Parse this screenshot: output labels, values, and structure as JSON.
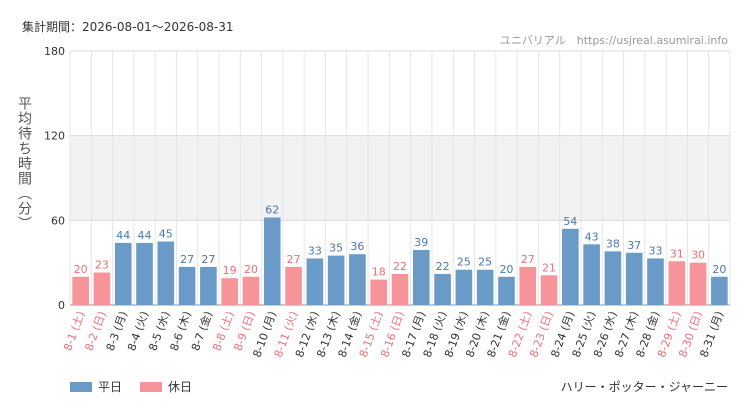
{
  "header": {
    "period_label": "集計期間：2026-08-01～2026-08-31",
    "site_credit": "ユニバリアル　https://usjreal.asumirai.info"
  },
  "footer": {
    "attraction": "ハリー・ポッター・ジャーニー"
  },
  "chart_data": {
    "type": "bar",
    "ylabel": "平均待ち時間（分）",
    "ylim": [
      0,
      180
    ],
    "yticks": [
      0,
      60,
      120,
      180
    ],
    "shaded_band": [
      60,
      120
    ],
    "grid": true,
    "legend_position": "bottom-left",
    "colors": {
      "weekday": "#6a9bc8",
      "holiday": "#f6949a",
      "holiday_label": "#e8707a",
      "weekday_label": "#333333"
    },
    "legend": [
      {
        "key": "weekday",
        "label": "平日"
      },
      {
        "key": "holiday",
        "label": "休日"
      }
    ],
    "categories": [
      "8-1 (土)",
      "8-2 (日)",
      "8-3 (月)",
      "8-4 (火)",
      "8-5 (水)",
      "8-6 (木)",
      "8-7 (金)",
      "8-8 (土)",
      "8-9 (日)",
      "8-10 (月)",
      "8-11 (火)",
      "8-12 (水)",
      "8-13 (木)",
      "8-14 (金)",
      "8-15 (土)",
      "8-16 (日)",
      "8-17 (月)",
      "8-18 (火)",
      "8-19 (水)",
      "8-20 (木)",
      "8-21 (金)",
      "8-22 (土)",
      "8-23 (日)",
      "8-24 (月)",
      "8-25 (火)",
      "8-26 (水)",
      "8-27 (木)",
      "8-28 (金)",
      "8-29 (土)",
      "8-30 (日)",
      "8-31 (月)"
    ],
    "values": [
      20,
      23,
      44,
      44,
      45,
      27,
      27,
      19,
      20,
      62,
      27,
      33,
      35,
      36,
      18,
      22,
      39,
      22,
      25,
      25,
      20,
      27,
      21,
      54,
      43,
      38,
      37,
      33,
      31,
      30,
      20
    ],
    "day_type": [
      "holiday",
      "holiday",
      "weekday",
      "weekday",
      "weekday",
      "weekday",
      "weekday",
      "holiday",
      "holiday",
      "weekday",
      "holiday",
      "weekday",
      "weekday",
      "weekday",
      "holiday",
      "holiday",
      "weekday",
      "weekday",
      "weekday",
      "weekday",
      "weekday",
      "holiday",
      "holiday",
      "weekday",
      "weekday",
      "weekday",
      "weekday",
      "weekday",
      "holiday",
      "holiday",
      "weekday"
    ]
  }
}
